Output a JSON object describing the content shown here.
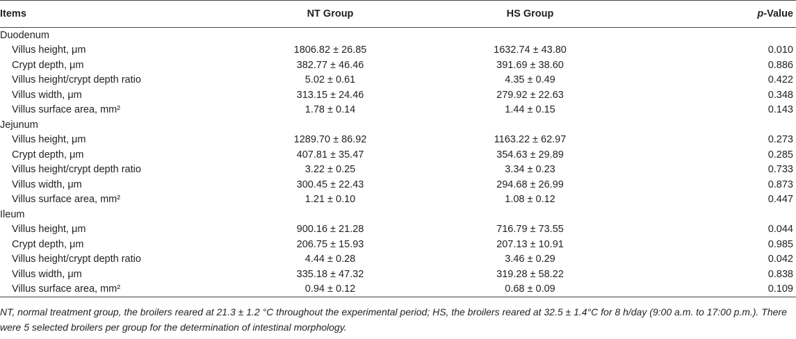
{
  "table": {
    "columns": [
      "Items",
      "NT Group",
      "HS Group",
      {
        "em": "p",
        "rest": "-Value"
      }
    ],
    "sections": [
      {
        "name": "Duodenum",
        "rows": [
          [
            "Villus height, μm",
            "1806.82 ± 26.85",
            "1632.74 ± 43.80",
            "0.010"
          ],
          [
            "Crypt depth, μm",
            "382.77 ± 46.46",
            "391.69 ± 38.60",
            "0.886"
          ],
          [
            "Villus height/crypt depth ratio",
            "5.02 ± 0.61",
            "4.35 ± 0.49",
            "0.422"
          ],
          [
            "Villus width, μm",
            "313.15 ± 24.46",
            "279.92 ± 22.63",
            "0.348"
          ],
          [
            "Villus surface area, mm²",
            "1.78 ± 0.14",
            "1.44 ± 0.15",
            "0.143"
          ]
        ]
      },
      {
        "name": "Jejunum",
        "rows": [
          [
            "Villus height, μm",
            "1289.70 ± 86.92",
            "1163.22 ± 62.97",
            "0.273"
          ],
          [
            "Crypt depth, μm",
            "407.81 ± 35.47",
            "354.63 ± 29.89",
            "0.285"
          ],
          [
            "Villus height/crypt depth ratio",
            "3.22 ± 0.25",
            "3.34 ± 0.23",
            "0.733"
          ],
          [
            "Villus width, μm",
            "300.45 ± 22.43",
            "294.68 ± 26.99",
            "0.873"
          ],
          [
            "Villus surface area, mm²",
            "1.21 ± 0.10",
            "1.08 ± 0.12",
            "0.447"
          ]
        ]
      },
      {
        "name": "Ileum",
        "rows": [
          [
            "Villus height, μm",
            "900.16 ± 21.28",
            "716.79 ± 73.55",
            "0.044"
          ],
          [
            "Crypt depth, μm",
            "206.75 ± 15.93",
            "207.13 ± 10.91",
            "0.985"
          ],
          [
            "Villus height/crypt depth ratio",
            "4.44 ± 0.28",
            "3.46 ± 0.29",
            "0.042"
          ],
          [
            "Villus width, μm",
            "335.18 ± 47.32",
            "319.28 ± 58.22",
            "0.838"
          ],
          [
            "Villus surface area, mm²",
            "0.94 ± 0.12",
            "0.68 ± 0.09",
            "0.109"
          ]
        ]
      }
    ],
    "footnote": "NT, normal treatment group, the broilers reared at 21.3 ± 1.2 °C throughout the experimental period; HS, the broilers reared at 32.5 ± 1.4°C for 8 h/day (9:00 a.m. to 17:00 p.m.). There were 5 selected broilers per group for the determination of intestinal morphology."
  }
}
